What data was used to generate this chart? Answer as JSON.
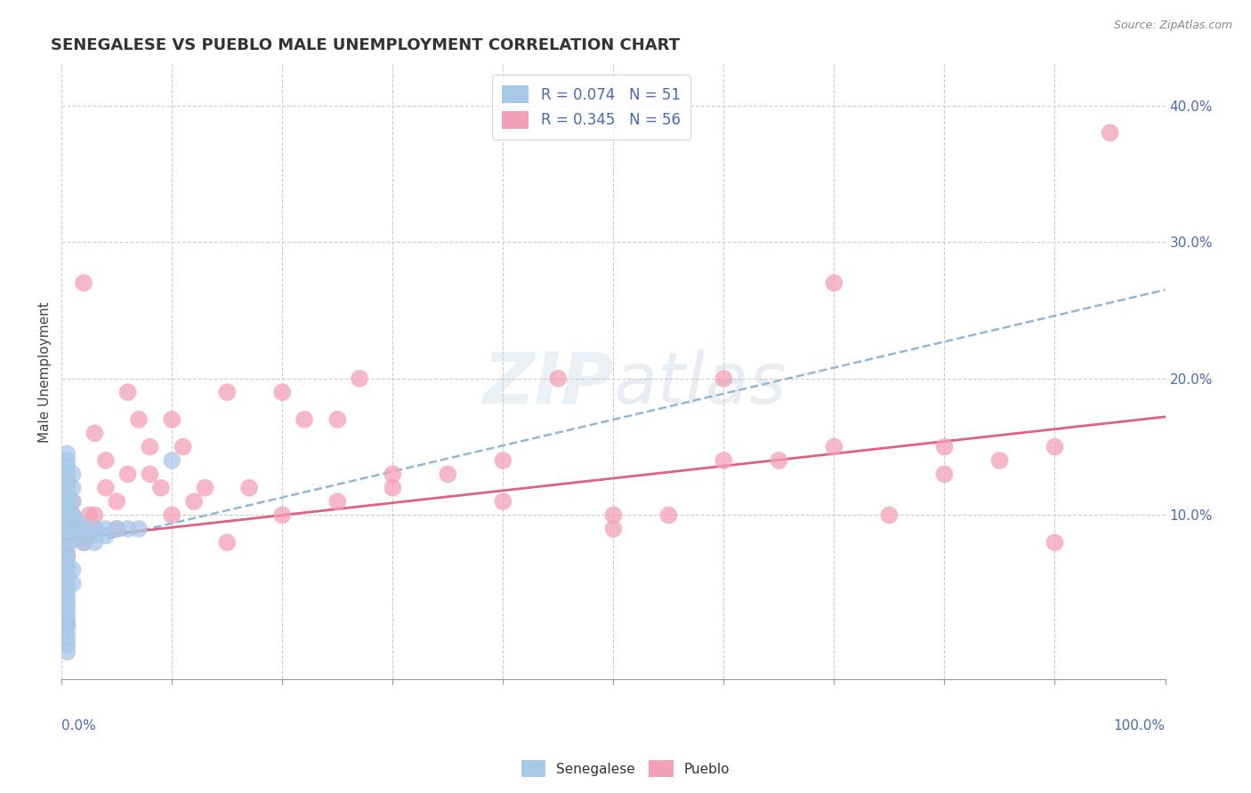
{
  "title": "SENEGALESE VS PUEBLO MALE UNEMPLOYMENT CORRELATION CHART",
  "source": "Source: ZipAtlas.com",
  "ylabel": "Male Unemployment",
  "xlim": [
    0,
    1.0
  ],
  "ylim": [
    -0.02,
    0.43
  ],
  "yticks_right": [
    0.1,
    0.2,
    0.3,
    0.4
  ],
  "ytick_labels_right": [
    "10.0%",
    "20.0%",
    "30.0%",
    "40.0%"
  ],
  "senegalese_color": "#a8c8e8",
  "pueblo_color": "#f4a0b8",
  "senegalese_trend_color": "#90b8d8",
  "pueblo_trend_color": "#e06080",
  "senegalese_R": 0.074,
  "senegalese_N": 51,
  "pueblo_R": 0.345,
  "pueblo_N": 56,
  "senegalese_x": [
    0.005,
    0.005,
    0.005,
    0.005,
    0.005,
    0.005,
    0.005,
    0.005,
    0.005,
    0.005,
    0.005,
    0.005,
    0.005,
    0.005,
    0.005,
    0.005,
    0.005,
    0.005,
    0.005,
    0.005,
    0.005,
    0.005,
    0.005,
    0.005,
    0.005,
    0.005,
    0.005,
    0.005,
    0.005,
    0.005,
    0.005,
    0.01,
    0.01,
    0.01,
    0.01,
    0.01,
    0.01,
    0.01,
    0.015,
    0.015,
    0.02,
    0.02,
    0.025,
    0.03,
    0.03,
    0.04,
    0.04,
    0.05,
    0.06,
    0.07,
    0.1
  ],
  "senegalese_y": [
    0.04,
    0.045,
    0.05,
    0.055,
    0.06,
    0.065,
    0.07,
    0.075,
    0.08,
    0.085,
    0.09,
    0.095,
    0.1,
    0.105,
    0.11,
    0.115,
    0.12,
    0.02,
    0.025,
    0.03,
    0.035,
    0.01,
    0.015,
    0.005,
    0.0,
    0.145,
    0.13,
    0.135,
    0.14,
    0.125,
    0.02,
    0.09,
    0.1,
    0.11,
    0.12,
    0.13,
    0.05,
    0.06,
    0.085,
    0.095,
    0.08,
    0.09,
    0.085,
    0.09,
    0.08,
    0.085,
    0.09,
    0.09,
    0.09,
    0.09,
    0.14
  ],
  "pueblo_x": [
    0.005,
    0.01,
    0.01,
    0.015,
    0.02,
    0.02,
    0.025,
    0.03,
    0.03,
    0.04,
    0.05,
    0.05,
    0.06,
    0.07,
    0.08,
    0.09,
    0.1,
    0.11,
    0.12,
    0.13,
    0.15,
    0.17,
    0.2,
    0.22,
    0.25,
    0.27,
    0.3,
    0.35,
    0.4,
    0.45,
    0.5,
    0.55,
    0.6,
    0.65,
    0.7,
    0.75,
    0.8,
    0.85,
    0.9,
    0.95,
    0.02,
    0.03,
    0.04,
    0.06,
    0.08,
    0.1,
    0.15,
    0.2,
    0.25,
    0.3,
    0.4,
    0.5,
    0.6,
    0.7,
    0.8,
    0.9
  ],
  "pueblo_y": [
    0.07,
    0.1,
    0.11,
    0.09,
    0.08,
    0.09,
    0.1,
    0.09,
    0.1,
    0.14,
    0.09,
    0.11,
    0.13,
    0.17,
    0.13,
    0.12,
    0.1,
    0.15,
    0.11,
    0.12,
    0.19,
    0.12,
    0.19,
    0.17,
    0.17,
    0.2,
    0.12,
    0.13,
    0.14,
    0.2,
    0.1,
    0.1,
    0.14,
    0.14,
    0.15,
    0.1,
    0.15,
    0.14,
    0.15,
    0.38,
    0.27,
    0.16,
    0.12,
    0.19,
    0.15,
    0.17,
    0.08,
    0.1,
    0.11,
    0.13,
    0.11,
    0.09,
    0.2,
    0.27,
    0.13,
    0.08
  ],
  "pueblo_trend_x0": 0.0,
  "pueblo_trend_y0": 0.082,
  "pueblo_trend_x1": 1.0,
  "pueblo_trend_y1": 0.172,
  "senegalese_trend_x0": 0.0,
  "senegalese_trend_y0": 0.075,
  "senegalese_trend_x1": 1.0,
  "senegalese_trend_y1": 0.265
}
